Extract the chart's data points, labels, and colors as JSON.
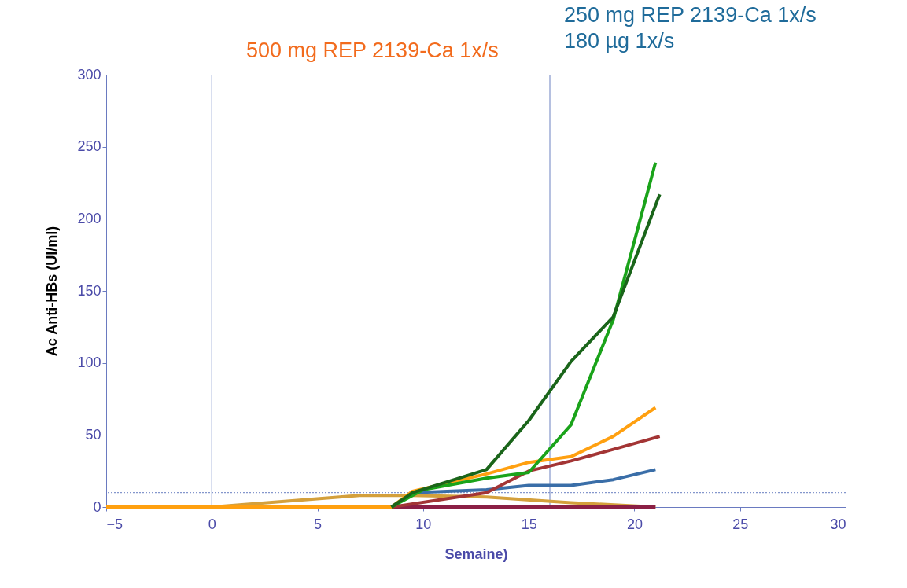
{
  "chart_data": {
    "type": "line",
    "xlabel": "Semaine)",
    "ylabel": "Ac Anti-HBs (UI/ml)",
    "annotations": [
      "500 mg REP 2139-Ca 1x/s",
      "250 mg REP 2139-Ca 1x/s\n180 µg 1x/s"
    ],
    "xlim": [
      -5,
      30
    ],
    "xticks": [
      -5,
      0,
      5,
      10,
      15,
      20,
      25,
      30
    ],
    "ylim": [
      0,
      300
    ],
    "yticks": [
      0,
      50,
      100,
      150,
      200,
      250,
      300
    ],
    "grid": false,
    "legend": false,
    "marker": "none",
    "line_style": "solid",
    "ref_lines": [
      {
        "axis": "x",
        "value": 0,
        "color": "#8496cc",
        "line_style": "solid"
      },
      {
        "axis": "x",
        "value": 16,
        "color": "#8496cc",
        "line_style": "solid"
      },
      {
        "axis": "y",
        "value": 10,
        "color": "#8496cc",
        "line_style": "dotted"
      }
    ],
    "series": [
      {
        "color": "#d4a03c",
        "x": [
          -5,
          0,
          7,
          9.5,
          13,
          17,
          21
        ],
        "values": [
          0,
          0,
          8,
          8,
          7,
          3,
          0
        ]
      },
      {
        "color": "#8b1f45",
        "x": [
          8.5,
          21
        ],
        "values": [
          0,
          0
        ]
      },
      {
        "color": "#3a6ea8",
        "x": [
          8.5,
          9.5,
          13,
          15,
          17,
          19,
          21
        ],
        "values": [
          0,
          10,
          12,
          15,
          15,
          19,
          26
        ]
      },
      {
        "color": "#a33535",
        "x": [
          8.5,
          13,
          15,
          17,
          19,
          21.2
        ],
        "values": [
          0,
          10,
          25,
          32,
          40,
          49
        ]
      },
      {
        "color": "#ffa010",
        "x": [
          -5,
          8.5,
          9.5,
          13,
          15,
          17,
          19,
          21
        ],
        "values": [
          0,
          0,
          11,
          23,
          31,
          35,
          49,
          69
        ]
      },
      {
        "color": "#1aa31a",
        "x": [
          8.5,
          10,
          13,
          15,
          17,
          19,
          21
        ],
        "values": [
          0,
          12,
          20,
          24,
          57,
          130,
          239
        ]
      },
      {
        "color": "#1a651a",
        "x": [
          8.5,
          9.5,
          13,
          15,
          17,
          19,
          21.2
        ],
        "values": [
          0,
          10,
          26,
          60,
          101,
          132,
          217
        ]
      }
    ]
  }
}
